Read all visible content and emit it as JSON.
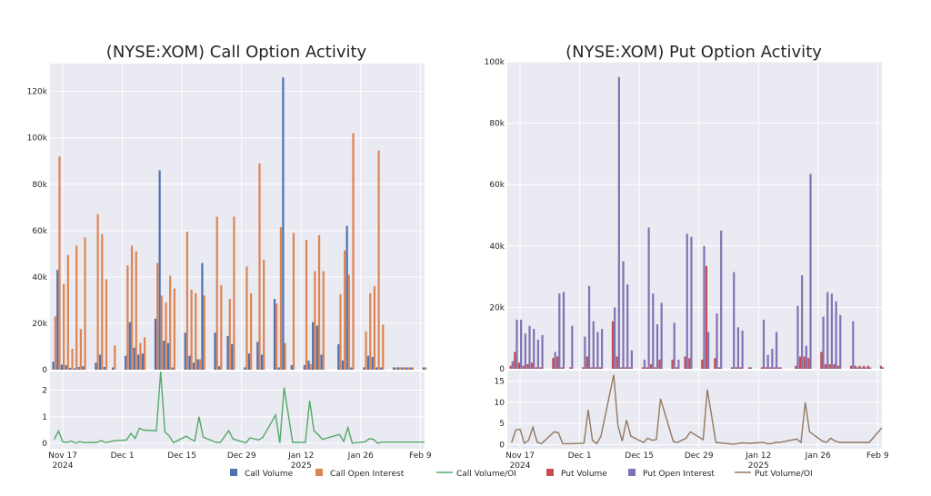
{
  "charts": [
    {
      "title": "(NYSE:XOM) Call Option Activity"
    },
    {
      "title": "(NYSE:XOM) Put Option Activity"
    }
  ],
  "colors": {
    "call_volume": "#4c72b0",
    "call_oi": "#dd8452",
    "call_ratio": "#55a868",
    "put_volume": "#c44e52",
    "put_oi": "#8172b3",
    "put_ratio": "#937860",
    "plot_bg": "#eaeaf2",
    "grid": "#ffffff"
  },
  "legend": [
    {
      "label": "Call Volume",
      "color_key": "call_volume",
      "kind": "box"
    },
    {
      "label": "Call Open Interest",
      "color_key": "call_oi",
      "kind": "box"
    },
    {
      "label": "Call Volume/OI",
      "color_key": "call_ratio",
      "kind": "line"
    },
    {
      "label": "Put Volume",
      "color_key": "put_volume",
      "kind": "box"
    },
    {
      "label": "Put Open Interest",
      "color_key": "put_oi",
      "kind": "box"
    },
    {
      "label": "Put Volume/OI",
      "color_key": "put_ratio",
      "kind": "line"
    }
  ],
  "chart_data": [
    {
      "type": "bar",
      "title": "(NYSE:XOM) Call Option Activity",
      "x_axis": {
        "type": "date",
        "range": [
          "2024-11-14",
          "2025-02-10"
        ]
      },
      "x_ticks": [
        {
          "date": "2024-11-17",
          "label": "Nov 17",
          "sub": "2024"
        },
        {
          "date": "2024-12-01",
          "label": "Dec 1",
          "sub": ""
        },
        {
          "date": "2024-12-15",
          "label": "Dec 15",
          "sub": ""
        },
        {
          "date": "2024-12-29",
          "label": "Dec 29",
          "sub": ""
        },
        {
          "date": "2025-01-12",
          "label": "Jan 12",
          "sub": "2025"
        },
        {
          "date": "2025-01-26",
          "label": "Jan 26",
          "sub": ""
        },
        {
          "date": "2025-02-09",
          "label": "Feb 9",
          "sub": ""
        }
      ],
      "bar_panel": {
        "ylim": [
          0,
          132000
        ],
        "ticks": [
          {
            "v": 0,
            "label": "0"
          },
          {
            "v": 20000,
            "label": "20k"
          },
          {
            "v": 40000,
            "label": "40k"
          },
          {
            "v": 60000,
            "label": "60k"
          },
          {
            "v": 80000,
            "label": "80k"
          },
          {
            "v": 100000,
            "label": "100k"
          },
          {
            "v": 120000,
            "label": "120k"
          }
        ]
      },
      "ratio_panel": {
        "ylim": [
          -0.2,
          2.7
        ],
        "ticks": [
          {
            "v": 0,
            "label": "0"
          },
          {
            "v": 1,
            "label": "1"
          },
          {
            "v": 2,
            "label": "2"
          }
        ]
      },
      "dates": [
        "2024-11-15",
        "2024-11-16",
        "2024-11-17",
        "2024-11-18",
        "2024-11-19",
        "2024-11-20",
        "2024-11-21",
        "2024-11-22",
        "2024-11-25",
        "2024-11-26",
        "2024-11-27",
        "2024-11-29",
        "2024-12-02",
        "2024-12-03",
        "2024-12-04",
        "2024-12-05",
        "2024-12-06",
        "2024-12-09",
        "2024-12-10",
        "2024-12-11",
        "2024-12-12",
        "2024-12-13",
        "2024-12-16",
        "2024-12-17",
        "2024-12-18",
        "2024-12-19",
        "2024-12-20",
        "2024-12-23",
        "2024-12-24",
        "2024-12-26",
        "2024-12-27",
        "2024-12-30",
        "2024-12-31",
        "2025-01-02",
        "2025-01-03",
        "2025-01-06",
        "2025-01-07",
        "2025-01-08",
        "2025-01-10",
        "2025-01-13",
        "2025-01-14",
        "2025-01-15",
        "2025-01-16",
        "2025-01-17",
        "2025-01-21",
        "2025-01-22",
        "2025-01-23",
        "2025-01-24",
        "2025-01-27",
        "2025-01-28",
        "2025-01-29",
        "2025-01-30",
        "2025-01-31",
        "2025-02-03",
        "2025-02-04",
        "2025-02-05",
        "2025-02-06",
        "2025-02-07",
        "2025-02-10"
      ],
      "series": [
        {
          "name": "Call Volume",
          "type": "bar",
          "color_key": "call_volume",
          "values": [
            3500,
            43000,
            2200,
            2000,
            800,
            600,
            1200,
            1500,
            3000,
            6500,
            1200,
            1000,
            6000,
            20500,
            9500,
            6500,
            7000,
            22000,
            86000,
            12500,
            11500,
            1000,
            16000,
            6000,
            3000,
            4500,
            46000,
            16000,
            1500,
            14500,
            11000,
            1000,
            7000,
            12000,
            6500,
            30500,
            1000,
            126000,
            2000,
            2000,
            4000,
            20500,
            19000,
            6500,
            11000,
            4000,
            62000,
            1000,
            1000,
            6000,
            5500,
            1000,
            1000,
            1000,
            1000,
            1000,
            1000,
            1000,
            1000
          ]
        },
        {
          "name": "Call Open Interest",
          "type": "bar",
          "color_key": "call_oi",
          "values": [
            23000,
            92000,
            37000,
            49500,
            9000,
            53500,
            17500,
            57000,
            67000,
            58500,
            39000,
            10500,
            45000,
            53500,
            51000,
            11500,
            14000,
            46000,
            32000,
            29000,
            40500,
            35000,
            59500,
            34500,
            33000,
            4500,
            32000,
            66000,
            36500,
            30500,
            66000,
            44500,
            33000,
            89000,
            47500,
            28500,
            61500,
            11500,
            59000,
            56000,
            2500,
            42500,
            58000,
            42500,
            32500,
            51500,
            41000,
            102000,
            16500,
            33000,
            36000,
            94500,
            19500,
            1000,
            1000,
            1000,
            1000,
            1000,
            1000
          ]
        },
        {
          "name": "Call Volume/OI",
          "type": "line",
          "color_key": "call_ratio",
          "values": [
            0.15,
            0.47,
            0.06,
            0.04,
            0.09,
            0.01,
            0.07,
            0.03,
            0.04,
            0.11,
            0.03,
            0.1,
            0.13,
            0.38,
            0.19,
            0.57,
            0.5,
            0.48,
            2.7,
            0.43,
            0.28,
            0.03,
            0.27,
            0.17,
            0.09,
            1.0,
            0.24,
            0.04,
            0.04,
            0.48,
            0.17,
            0.02,
            0.21,
            0.13,
            0.23,
            1.07,
            0.02,
            2.1,
            0.04,
            0.04,
            1.6,
            0.48,
            0.33,
            0.15,
            0.34,
            0.08,
            0.6,
            0.01,
            0.06,
            0.18,
            0.15,
            0.01,
            0.05,
            0.05,
            0.05,
            0.05,
            0.05,
            0.05,
            0.05
          ]
        }
      ]
    },
    {
      "type": "bar",
      "title": "(NYSE:XOM) Put Option Activity",
      "x_axis": {
        "type": "date",
        "range": [
          "2024-11-14",
          "2025-02-10"
        ]
      },
      "x_ticks": [
        {
          "date": "2024-11-17",
          "label": "Nov 17",
          "sub": "2024"
        },
        {
          "date": "2024-12-01",
          "label": "Dec 1",
          "sub": ""
        },
        {
          "date": "2024-12-15",
          "label": "Dec 15",
          "sub": ""
        },
        {
          "date": "2024-12-29",
          "label": "Dec 29",
          "sub": ""
        },
        {
          "date": "2025-01-12",
          "label": "Jan 12",
          "sub": "2025"
        },
        {
          "date": "2025-01-26",
          "label": "Jan 26",
          "sub": ""
        },
        {
          "date": "2025-02-09",
          "label": "Feb 9",
          "sub": ""
        }
      ],
      "bar_panel": {
        "ylim": [
          0,
          100000
        ],
        "ticks": [
          {
            "v": 0,
            "label": "0"
          },
          {
            "v": 20000,
            "label": "20k"
          },
          {
            "v": 40000,
            "label": "40k"
          },
          {
            "v": 60000,
            "label": "60k"
          },
          {
            "v": 80000,
            "label": "80k"
          },
          {
            "v": 100000,
            "label": "100k"
          }
        ]
      },
      "ratio_panel": {
        "ylim": [
          -1,
          17.5
        ],
        "ticks": [
          {
            "v": 0,
            "label": "0"
          },
          {
            "v": 5,
            "label": "5"
          },
          {
            "v": 10,
            "label": "10"
          },
          {
            "v": 15,
            "label": "15"
          }
        ]
      },
      "dates": [
        "2024-11-15",
        "2024-11-16",
        "2024-11-17",
        "2024-11-18",
        "2024-11-19",
        "2024-11-20",
        "2024-11-21",
        "2024-11-22",
        "2024-11-25",
        "2024-11-26",
        "2024-11-27",
        "2024-11-29",
        "2024-12-02",
        "2024-12-03",
        "2024-12-04",
        "2024-12-05",
        "2024-12-06",
        "2024-12-09",
        "2024-12-10",
        "2024-12-11",
        "2024-12-12",
        "2024-12-13",
        "2024-12-16",
        "2024-12-17",
        "2024-12-18",
        "2024-12-19",
        "2024-12-20",
        "2024-12-23",
        "2024-12-24",
        "2024-12-26",
        "2024-12-27",
        "2024-12-30",
        "2024-12-31",
        "2025-01-02",
        "2025-01-03",
        "2025-01-06",
        "2025-01-07",
        "2025-01-08",
        "2025-01-10",
        "2025-01-13",
        "2025-01-14",
        "2025-01-15",
        "2025-01-16",
        "2025-01-17",
        "2025-01-21",
        "2025-01-22",
        "2025-01-23",
        "2025-01-24",
        "2025-01-27",
        "2025-01-28",
        "2025-01-29",
        "2025-01-30",
        "2025-01-31",
        "2025-02-03",
        "2025-02-04",
        "2025-02-05",
        "2025-02-06",
        "2025-02-07",
        "2025-02-10"
      ],
      "series": [
        {
          "name": "Put Volume",
          "type": "bar",
          "color_key": "put_volume",
          "values": [
            1000,
            5500,
            2000,
            1000,
            1500,
            2000,
            500,
            500,
            3500,
            4000,
            500,
            500,
            500,
            4000,
            500,
            500,
            500,
            15500,
            4000,
            500,
            500,
            500,
            500,
            500,
            1500,
            500,
            3000,
            3000,
            500,
            4000,
            3500,
            3000,
            33500,
            3500,
            500,
            500,
            500,
            500,
            500,
            500,
            500,
            500,
            500,
            500,
            1000,
            4000,
            4000,
            3500,
            5500,
            1500,
            1500,
            1500,
            1000,
            1000,
            1000,
            1000,
            1000,
            1000,
            1000
          ]
        },
        {
          "name": "Put Open Interest",
          "type": "bar",
          "color_key": "put_oi",
          "values": [
            2500,
            16000,
            16000,
            11500,
            14000,
            13000,
            9500,
            11000,
            5500,
            24500,
            25000,
            14000,
            10500,
            27000,
            15500,
            12000,
            13000,
            20000,
            95000,
            35000,
            27500,
            6000,
            3000,
            46000,
            24500,
            14500,
            21500,
            15000,
            3000,
            44000,
            43000,
            40000,
            12000,
            18000,
            45000,
            31500,
            13500,
            12500,
            500,
            16000,
            4500,
            6500,
            12000,
            500,
            20500,
            30500,
            7500,
            63500,
            17000,
            25000,
            24500,
            22000,
            17500,
            15500,
            500,
            500,
            500,
            500,
            500
          ]
        },
        {
          "name": "Put Volume/OI",
          "type": "line",
          "color_key": "put_ratio",
          "values": [
            0.5,
            3.5,
            3.6,
            0.3,
            1.0,
            4.1,
            0.6,
            0.2,
            3.0,
            2.8,
            0.2,
            0.2,
            0.3,
            8.2,
            1.0,
            0.2,
            2.0,
            16.5,
            4.5,
            0.8,
            5.8,
            2.0,
            0.5,
            1.5,
            1.0,
            1.2,
            10.8,
            0.7,
            0.5,
            1.5,
            3.0,
            1.2,
            13.0,
            0.5,
            0.4,
            0.1,
            0.2,
            0.4,
            0.3,
            0.5,
            0.2,
            0.2,
            0.5,
            0.5,
            1.3,
            0.5,
            10.0,
            3.0,
            0.8,
            0.5,
            1.5,
            0.8,
            0.5,
            0.5,
            0.5,
            0.5,
            0.5,
            0.5,
            4.0
          ]
        }
      ]
    }
  ]
}
